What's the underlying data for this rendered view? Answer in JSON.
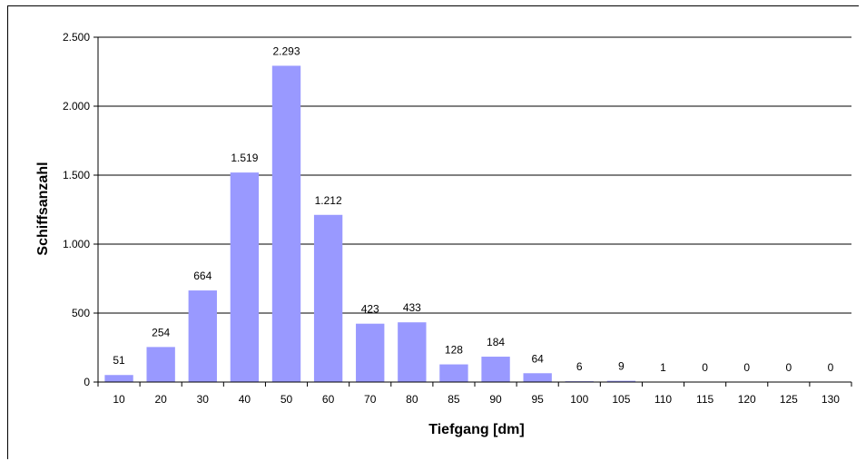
{
  "chart_data": {
    "type": "bar",
    "categories": [
      "10",
      "20",
      "30",
      "40",
      "50",
      "60",
      "70",
      "80",
      "85",
      "90",
      "95",
      "100",
      "105",
      "110",
      "115",
      "120",
      "125",
      "130"
    ],
    "values": [
      51,
      254,
      664,
      1519,
      2293,
      1212,
      423,
      433,
      128,
      184,
      64,
      6,
      9,
      1,
      0,
      0,
      0,
      0
    ],
    "data_labels": [
      "51",
      "254",
      "664",
      "1.519",
      "2.293",
      "1.212",
      "423",
      "433",
      "128",
      "184",
      "64",
      "6",
      "9",
      "1",
      "0",
      "0",
      "0",
      "0"
    ],
    "xlabel": "Tiefgang [dm]",
    "ylabel": "Schiffsanzahl",
    "ylim": [
      0,
      2500
    ],
    "yticks": [
      0,
      500,
      1000,
      1500,
      2000,
      2500
    ],
    "ytick_labels": [
      "0",
      "500",
      "1.000",
      "1.500",
      "2.000",
      "2.500"
    ],
    "grid": true,
    "bar_color": "#9999FF",
    "grid_color": "#000000"
  }
}
